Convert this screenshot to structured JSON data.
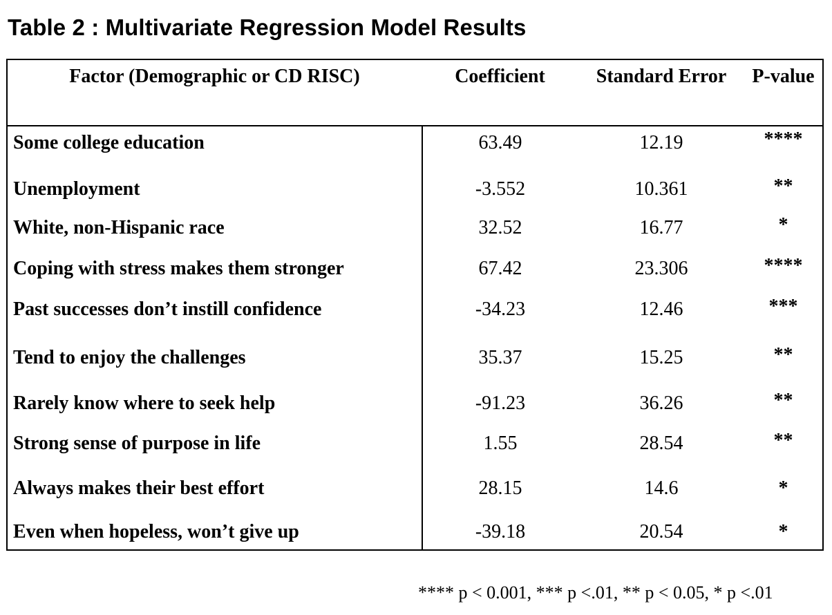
{
  "title": "Table 2 : Multivariate Regression Model Results",
  "table": {
    "headers": {
      "factor": "Factor (Demographic or CD RISC)",
      "coefficient": "Coefficient",
      "standard_error": "Standard Error",
      "p_value": "P-value"
    },
    "rows": [
      {
        "factor": "Some college education",
        "coefficient": "63.49",
        "standard_error": "12.19",
        "p_value": "****"
      },
      {
        "factor": "Unemployment",
        "coefficient": "-3.552",
        "standard_error": "10.361",
        "p_value": "**"
      },
      {
        "factor": "White, non-Hispanic race",
        "coefficient": "32.52",
        "standard_error": "16.77",
        "p_value": "*"
      },
      {
        "factor": "Coping with stress makes them stronger",
        "coefficient": "67.42",
        "standard_error": "23.306",
        "p_value": "****"
      },
      {
        "factor": "Past successes don’t instill confidence",
        "coefficient": "-34.23",
        "standard_error": "12.46",
        "p_value": "***"
      },
      {
        "factor": "Tend to enjoy the challenges",
        "coefficient": "35.37",
        "standard_error": "15.25",
        "p_value": "**"
      },
      {
        "factor": "Rarely know where to seek help",
        "coefficient": "-91.23",
        "standard_error": "36.26",
        "p_value": "**"
      },
      {
        "factor": "Strong sense of purpose in life",
        "coefficient": "1.55",
        "standard_error": "28.54",
        "p_value": "**"
      },
      {
        "factor": "Always makes their best effort",
        "coefficient": "28.15",
        "standard_error": "14.6",
        "p_value": "*"
      },
      {
        "factor": "Even when hopeless, won’t give up",
        "coefficient": "-39.18",
        "standard_error": "20.54",
        "p_value": "*"
      }
    ]
  },
  "footnote": "**** p < 0.001, *** p <.01, ** p < 0.05, * p <.01"
}
